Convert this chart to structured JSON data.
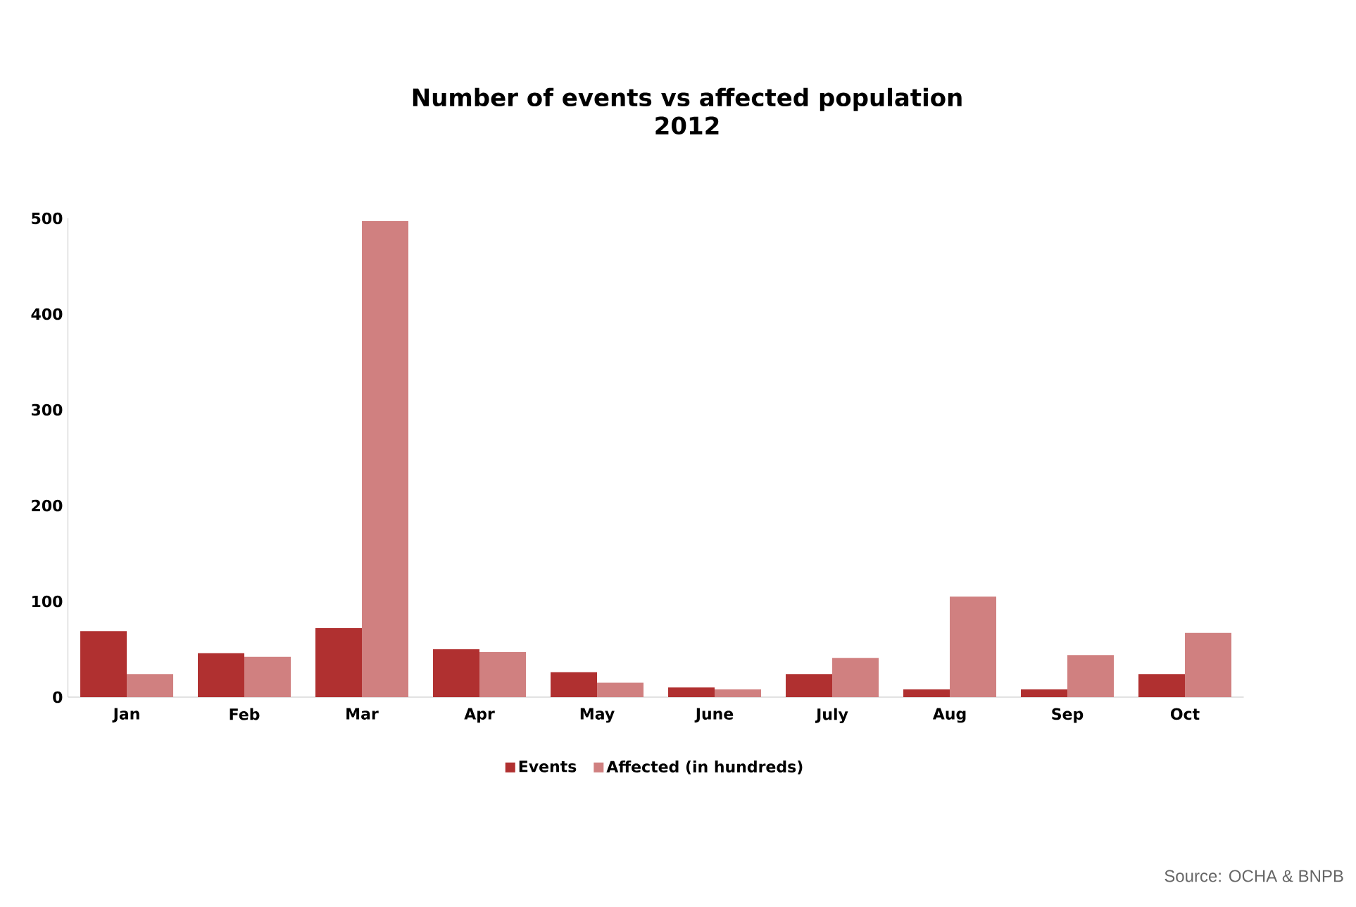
{
  "chart_data": {
    "type": "bar",
    "title": "Number of events vs affected population",
    "subtitle": "2012",
    "categories": [
      "Jan",
      "Feb",
      "Mar",
      "Apr",
      "May",
      "June",
      "July",
      "Aug",
      "Sep",
      "Oct"
    ],
    "series": [
      {
        "name": "Events",
        "color": "#b03030",
        "values": [
          69,
          46,
          72,
          50,
          26,
          10,
          24,
          8,
          8,
          24
        ]
      },
      {
        "name": "Affected (in hundreds)",
        "color": "#d08080",
        "values": [
          24,
          42,
          497,
          47,
          15,
          8,
          41,
          105,
          44,
          67
        ]
      }
    ],
    "ylim": [
      0,
      500
    ],
    "yticks": [
      0,
      100,
      200,
      300,
      400,
      500
    ],
    "grid": false,
    "legend": "bottom",
    "annotations": [
      "Source: OCHA & BNPB"
    ]
  }
}
